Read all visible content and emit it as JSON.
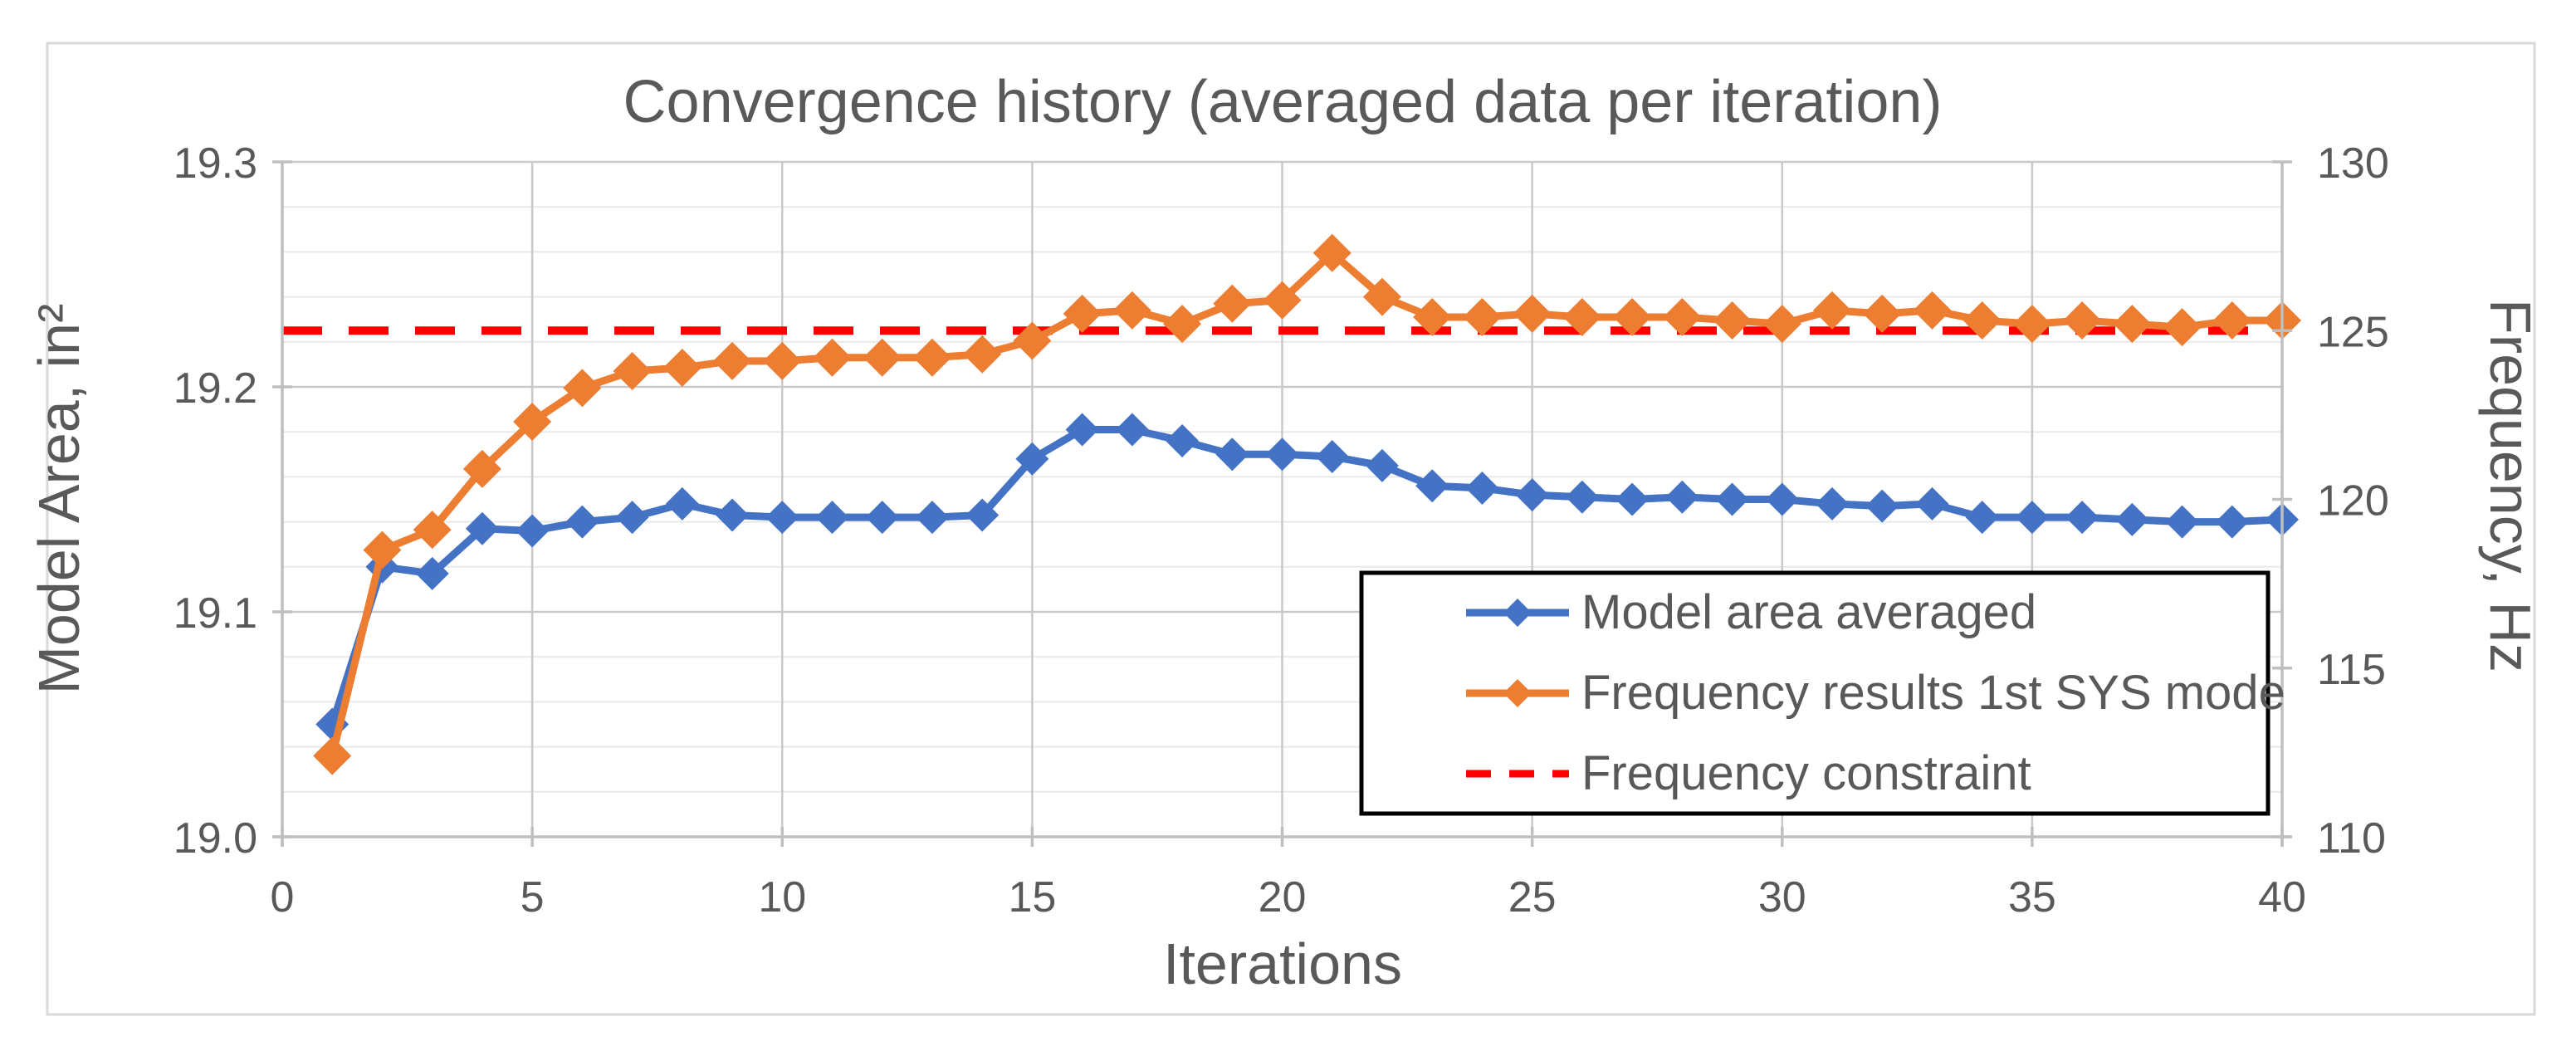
{
  "chart_data": {
    "type": "line",
    "title": "Convergence history (averaged data per iteration)",
    "xlabel": "Iterations",
    "left_ylabel": "Model Area, in²",
    "right_ylabel": "Frequency, Hz",
    "x_range": [
      0,
      40
    ],
    "x_ticks": [
      0,
      5,
      10,
      15,
      20,
      25,
      30,
      35,
      40
    ],
    "left_axis": {
      "range": [
        19.0,
        19.3
      ],
      "ticks": [
        19.0,
        19.1,
        19.2,
        19.3
      ],
      "minor_step": 0.02,
      "tick_decimals": 1
    },
    "right_axis": {
      "range": [
        110,
        130
      ],
      "ticks": [
        110,
        115,
        120,
        125,
        130
      ]
    },
    "x": [
      1,
      2,
      3,
      4,
      5,
      6,
      7,
      8,
      9,
      10,
      11,
      12,
      13,
      14,
      15,
      16,
      17,
      18,
      19,
      20,
      21,
      22,
      23,
      24,
      25,
      26,
      27,
      28,
      29,
      30,
      31,
      32,
      33,
      34,
      35,
      36,
      37,
      38,
      39,
      40
    ],
    "series": [
      {
        "name": "Model area averaged",
        "axis": "left",
        "color": "#4472C4",
        "marker": "diamond",
        "values": [
          19.05,
          19.12,
          19.117,
          19.137,
          19.136,
          19.14,
          19.142,
          19.148,
          19.143,
          19.142,
          19.142,
          19.142,
          19.142,
          19.143,
          19.168,
          19.181,
          19.181,
          19.176,
          19.17,
          19.17,
          19.169,
          19.165,
          19.156,
          19.155,
          19.152,
          19.151,
          19.15,
          19.151,
          19.15,
          19.15,
          19.148,
          19.147,
          19.148,
          19.142,
          19.142,
          19.142,
          19.141,
          19.14,
          19.14,
          19.141
        ]
      },
      {
        "name": "Frequency results 1st SYS mode",
        "axis": "right",
        "color": "#ED7D31",
        "marker": "diamond",
        "values": [
          112.4,
          118.5,
          119.1,
          120.9,
          122.3,
          123.3,
          123.8,
          123.9,
          124.1,
          124.1,
          124.2,
          124.2,
          124.2,
          124.3,
          124.7,
          125.5,
          125.6,
          125.2,
          125.8,
          125.9,
          127.3,
          126.0,
          125.4,
          125.4,
          125.5,
          125.4,
          125.4,
          125.4,
          125.3,
          125.2,
          125.6,
          125.5,
          125.6,
          125.3,
          125.2,
          125.3,
          125.2,
          125.1,
          125.3,
          125.3
        ]
      },
      {
        "name": "Frequency constraint",
        "axis": "right",
        "color": "#FF0000",
        "style": "dashed",
        "constant_value": 125
      }
    ],
    "legend": {
      "position": "inside-bottom-right",
      "border_color": "#000000",
      "background": "#FFFFFF"
    },
    "grid": {
      "major_color": "#C9C9C9",
      "minor_color": "#E9E9E9",
      "vertical_major": true
    },
    "axis_color": "#BFBFBF",
    "text_color": "#595959",
    "frame_border_color": "#D9D9D9",
    "background": "#FFFFFF"
  }
}
